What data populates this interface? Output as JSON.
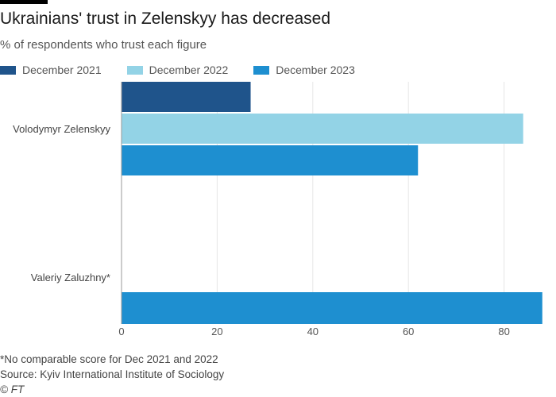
{
  "title": "Ukrainians' trust in Zelenskyy has decreased",
  "subtitle": "% of respondents who trust each figure",
  "footnote": "*No comparable score for Dec 2021 and 2022",
  "source": "Source: Kyiv International Institute of Sociology",
  "copyright": "© FT",
  "chart_data": {
    "type": "bar",
    "orientation": "horizontal",
    "title": "Ukrainians' trust in Zelenskyy has decreased",
    "subtitle": "% of respondents who trust each figure",
    "categories": [
      "Volodymyr Zelenskyy",
      "Valeriy Zaluzhny*"
    ],
    "series": [
      {
        "name": "December 2021",
        "color": "#1f548b",
        "values": [
          27,
          null
        ]
      },
      {
        "name": "December 2022",
        "color": "#93d3e6",
        "values": [
          84,
          null
        ]
      },
      {
        "name": "December 2023",
        "color": "#1e8fd0",
        "values": [
          62,
          88
        ]
      }
    ],
    "xlim": [
      0,
      88
    ],
    "xticks": [
      0,
      20,
      40,
      60,
      80
    ],
    "legend": "top",
    "grid": true
  }
}
